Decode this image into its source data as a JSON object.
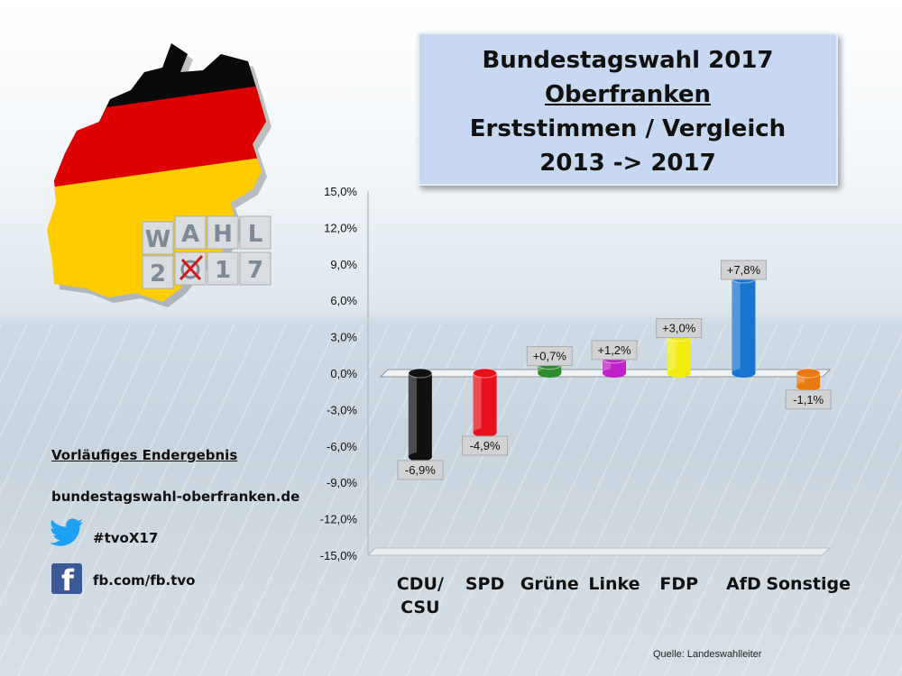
{
  "title": {
    "line1": "Bundestagswahl 2017",
    "line2": "Oberfranken",
    "line3": "Erststimmen / Vergleich",
    "line4": "2013 -> 2017"
  },
  "logo": {
    "tiles_top": [
      "W",
      "A",
      "H",
      "L"
    ],
    "tiles_bottom": [
      "2",
      "",
      "1",
      "7"
    ]
  },
  "info": {
    "status": "Vorläufiges Endergebnis",
    "website": "bundestagswahl-oberfranken.de",
    "hashtag": "#tvoX17",
    "facebook": "fb.com/fb.tvo"
  },
  "source": "Quelle: Landeswahlleiter",
  "colors": {
    "CDU/CSU": "#111111",
    "SPD": "#e8101a",
    "Grüne": "#2e8b2e",
    "Linke": "#c020c8",
    "FDP": "#f2ec10",
    "AfD": "#1874cd",
    "Sonstige": "#e87a12"
  },
  "chart_data": {
    "type": "bar",
    "categories": [
      "CDU/ CSU",
      "SPD",
      "Grüne",
      "Linke",
      "FDP",
      "AfD",
      "Sonstige"
    ],
    "values": [
      -6.9,
      -4.9,
      0.7,
      1.2,
      3.0,
      7.8,
      -1.1
    ],
    "data_labels": [
      "-6,9%",
      "-4,9%",
      "+0,7%",
      "+1,2%",
      "+3,0%",
      "+7,8%",
      "-1,1%"
    ],
    "ylim": [
      -15,
      15
    ],
    "yticks": [
      "15,0%",
      "12,0%",
      "9,0%",
      "6,0%",
      "3,0%",
      "0,0%",
      "-3,0%",
      "-6,0%",
      "-9,0%",
      "-12,0%",
      "-15,0%"
    ],
    "ytick_values": [
      15,
      12,
      9,
      6,
      3,
      0,
      -3,
      -6,
      -9,
      -12,
      -15
    ],
    "grid": false
  }
}
